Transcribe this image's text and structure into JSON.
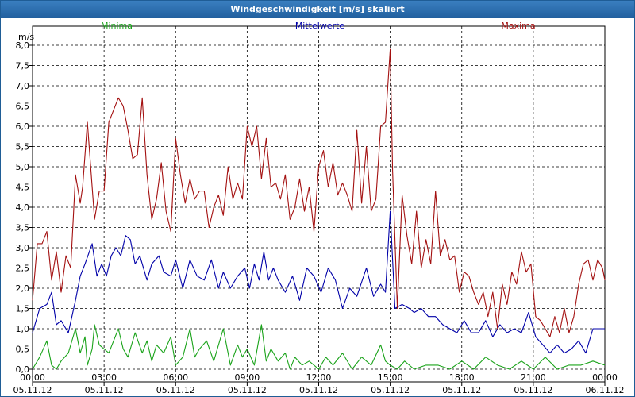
{
  "window": {
    "title": "Windgeschwindigkeit [m/s] skaliert"
  },
  "colors": {
    "minima": "#1aa31a",
    "mittelwerte": "#0000a8",
    "maxima": "#a31010",
    "title_bg": "#2f6fb0"
  },
  "chart_data": {
    "type": "line",
    "title": "Windgeschwindigkeit [m/s] skaliert",
    "ylabel": "m/s",
    "xlabel": "",
    "ylim": [
      0,
      8.0
    ],
    "xlim_hours": [
      0,
      24
    ],
    "grid": true,
    "legend_position": "top",
    "y_ticks": [
      "0,0",
      "0,5",
      "1,0",
      "1,5",
      "2,0",
      "2,5",
      "3,0",
      "3,5",
      "4,0",
      "4,5",
      "5,0",
      "5,5",
      "6,0",
      "6,5",
      "7,0",
      "7,5",
      "8,0"
    ],
    "x_ticks": [
      {
        "time": "00:00",
        "date": "05.11.12"
      },
      {
        "time": "03:00",
        "date": "05.11.12"
      },
      {
        "time": "06:00",
        "date": "05.11.12"
      },
      {
        "time": "09:00",
        "date": "05.11.12"
      },
      {
        "time": "12:00",
        "date": "05.11.12"
      },
      {
        "time": "15:00",
        "date": "05.11.12"
      },
      {
        "time": "18:00",
        "date": "05.11.12"
      },
      {
        "time": "21:00",
        "date": "05.11.12"
      },
      {
        "time": "00:00",
        "date": "06.11.12"
      }
    ],
    "series": [
      {
        "name": "Minima",
        "color": "#1aa31a",
        "x": [
          0,
          0.3,
          0.6,
          0.8,
          1.0,
          1.2,
          1.5,
          1.8,
          2.0,
          2.2,
          2.3,
          2.5,
          2.6,
          2.8,
          3.0,
          3.2,
          3.4,
          3.6,
          3.8,
          4.0,
          4.3,
          4.6,
          4.8,
          5.0,
          5.2,
          5.5,
          5.8,
          6.0,
          6.3,
          6.6,
          6.8,
          7.0,
          7.3,
          7.6,
          8.0,
          8.3,
          8.6,
          8.8,
          9.0,
          9.3,
          9.6,
          9.8,
          10.0,
          10.3,
          10.6,
          10.8,
          11.0,
          11.3,
          11.6,
          12.0,
          12.3,
          12.6,
          13.0,
          13.4,
          13.8,
          14.2,
          14.6,
          14.8,
          15.0,
          15.3,
          15.6,
          16.0,
          16.5,
          17.0,
          17.5,
          18.0,
          18.5,
          19.0,
          19.5,
          20.0,
          20.5,
          21.0,
          21.5,
          22.0,
          22.5,
          23.0,
          23.5,
          24.0
        ],
        "values": [
          0.0,
          0.3,
          0.7,
          0.1,
          0.0,
          0.2,
          0.4,
          1.0,
          0.4,
          0.8,
          0.1,
          0.5,
          1.1,
          0.6,
          0.5,
          0.4,
          0.7,
          1.0,
          0.5,
          0.3,
          0.9,
          0.4,
          0.7,
          0.2,
          0.6,
          0.4,
          0.8,
          0.1,
          0.3,
          1.0,
          0.3,
          0.5,
          0.7,
          0.2,
          1.0,
          0.1,
          0.6,
          0.3,
          0.5,
          0.1,
          1.1,
          0.2,
          0.5,
          0.2,
          0.4,
          0.0,
          0.3,
          0.1,
          0.2,
          0.0,
          0.3,
          0.1,
          0.4,
          0.0,
          0.3,
          0.1,
          0.6,
          0.2,
          0.1,
          0.0,
          0.2,
          0.0,
          0.1,
          0.1,
          0.0,
          0.2,
          0.0,
          0.3,
          0.1,
          0.0,
          0.2,
          0.0,
          0.3,
          0.0,
          0.1,
          0.1,
          0.2,
          0.1
        ]
      },
      {
        "name": "Mittelwerte",
        "color": "#0000a8",
        "x": [
          0,
          0.3,
          0.6,
          0.8,
          1.0,
          1.2,
          1.5,
          1.8,
          2.0,
          2.2,
          2.5,
          2.7,
          2.9,
          3.1,
          3.3,
          3.5,
          3.7,
          3.9,
          4.1,
          4.3,
          4.5,
          4.8,
          5.0,
          5.3,
          5.5,
          5.8,
          6.0,
          6.3,
          6.6,
          6.9,
          7.2,
          7.5,
          7.8,
          8.0,
          8.3,
          8.6,
          8.9,
          9.1,
          9.3,
          9.5,
          9.7,
          9.9,
          10.1,
          10.3,
          10.6,
          10.9,
          11.2,
          11.5,
          11.8,
          12.1,
          12.4,
          12.7,
          13.0,
          13.3,
          13.6,
          14.0,
          14.3,
          14.6,
          14.8,
          15.0,
          15.2,
          15.5,
          15.8,
          16.0,
          16.3,
          16.6,
          16.9,
          17.2,
          17.5,
          17.8,
          18.1,
          18.4,
          18.7,
          19.0,
          19.3,
          19.6,
          19.9,
          20.2,
          20.5,
          20.8,
          21.1,
          21.4,
          21.7,
          22.0,
          22.3,
          22.6,
          22.9,
          23.2,
          23.5,
          23.8,
          24.0
        ],
        "values": [
          0.9,
          1.5,
          1.6,
          1.9,
          1.1,
          1.2,
          0.9,
          1.7,
          2.3,
          2.6,
          3.1,
          2.3,
          2.6,
          2.3,
          2.8,
          3.0,
          2.8,
          3.3,
          3.2,
          2.6,
          2.8,
          2.2,
          2.6,
          2.8,
          2.4,
          2.3,
          2.7,
          2.0,
          2.7,
          2.3,
          2.2,
          2.7,
          2.0,
          2.4,
          2.0,
          2.3,
          2.5,
          2.0,
          2.6,
          2.2,
          2.9,
          2.2,
          2.5,
          2.2,
          1.9,
          2.3,
          1.7,
          2.5,
          2.3,
          1.9,
          2.5,
          2.2,
          1.5,
          2.0,
          1.8,
          2.5,
          1.8,
          2.1,
          1.9,
          3.9,
          1.5,
          1.6,
          1.5,
          1.4,
          1.5,
          1.3,
          1.3,
          1.1,
          1.0,
          0.9,
          1.2,
          0.9,
          0.9,
          1.2,
          0.8,
          1.1,
          0.9,
          1.0,
          0.9,
          1.4,
          0.8,
          0.6,
          0.4,
          0.6,
          0.4,
          0.5,
          0.7,
          0.4,
          1.0,
          1.0,
          1.0
        ]
      },
      {
        "name": "Maxima",
        "color": "#a31010",
        "x": [
          0,
          0.2,
          0.4,
          0.6,
          0.8,
          1.0,
          1.2,
          1.4,
          1.6,
          1.8,
          2.0,
          2.1,
          2.3,
          2.5,
          2.6,
          2.8,
          3.0,
          3.2,
          3.4,
          3.6,
          3.8,
          4.0,
          4.2,
          4.4,
          4.6,
          4.8,
          5.0,
          5.2,
          5.4,
          5.6,
          5.8,
          6.0,
          6.2,
          6.4,
          6.6,
          6.8,
          7.0,
          7.2,
          7.4,
          7.6,
          7.8,
          8.0,
          8.2,
          8.4,
          8.6,
          8.8,
          9.0,
          9.2,
          9.4,
          9.6,
          9.8,
          10.0,
          10.2,
          10.4,
          10.6,
          10.8,
          11.0,
          11.2,
          11.4,
          11.6,
          11.8,
          12.0,
          12.2,
          12.4,
          12.6,
          12.8,
          13.0,
          13.2,
          13.4,
          13.6,
          13.8,
          14.0,
          14.2,
          14.4,
          14.6,
          14.8,
          15.0,
          15.1,
          15.3,
          15.5,
          15.7,
          15.9,
          16.1,
          16.3,
          16.5,
          16.7,
          16.9,
          17.1,
          17.3,
          17.5,
          17.7,
          17.9,
          18.1,
          18.3,
          18.5,
          18.7,
          18.9,
          19.1,
          19.3,
          19.5,
          19.7,
          19.9,
          20.1,
          20.3,
          20.5,
          20.7,
          20.9,
          21.1,
          21.3,
          21.5,
          21.7,
          21.9,
          22.1,
          22.3,
          22.5,
          22.7,
          22.9,
          23.1,
          23.3,
          23.5,
          23.7,
          23.9,
          24.0
        ],
        "values": [
          1.7,
          3.1,
          3.1,
          3.4,
          2.2,
          2.9,
          1.9,
          2.8,
          2.5,
          4.8,
          4.1,
          4.5,
          6.1,
          4.5,
          3.7,
          4.4,
          4.4,
          6.1,
          6.4,
          6.7,
          6.5,
          5.9,
          5.2,
          5.3,
          6.7,
          4.8,
          3.7,
          4.2,
          5.1,
          3.9,
          3.4,
          5.7,
          4.8,
          4.1,
          4.7,
          4.2,
          4.4,
          4.4,
          3.5,
          4.0,
          4.3,
          3.8,
          5.0,
          4.2,
          4.6,
          4.2,
          6.0,
          5.5,
          6.0,
          4.7,
          5.7,
          4.5,
          4.6,
          4.2,
          4.8,
          3.7,
          4.0,
          4.7,
          3.9,
          4.5,
          3.4,
          5.0,
          5.4,
          4.5,
          5.1,
          4.3,
          4.6,
          4.3,
          3.9,
          5.9,
          4.1,
          5.5,
          3.9,
          4.2,
          6.0,
          6.1,
          7.9,
          4.9,
          1.5,
          4.3,
          3.3,
          2.6,
          3.9,
          2.5,
          3.2,
          2.6,
          4.4,
          2.8,
          3.2,
          2.7,
          2.8,
          1.9,
          2.4,
          2.3,
          1.9,
          1.6,
          1.9,
          1.3,
          1.9,
          1.0,
          2.1,
          1.6,
          2.4,
          2.1,
          2.9,
          2.4,
          2.6,
          1.3,
          1.2,
          1.0,
          0.8,
          1.3,
          0.9,
          1.5,
          0.9,
          1.3,
          2.1,
          2.6,
          2.7,
          2.2,
          2.7,
          2.5,
          2.2
        ]
      }
    ]
  }
}
